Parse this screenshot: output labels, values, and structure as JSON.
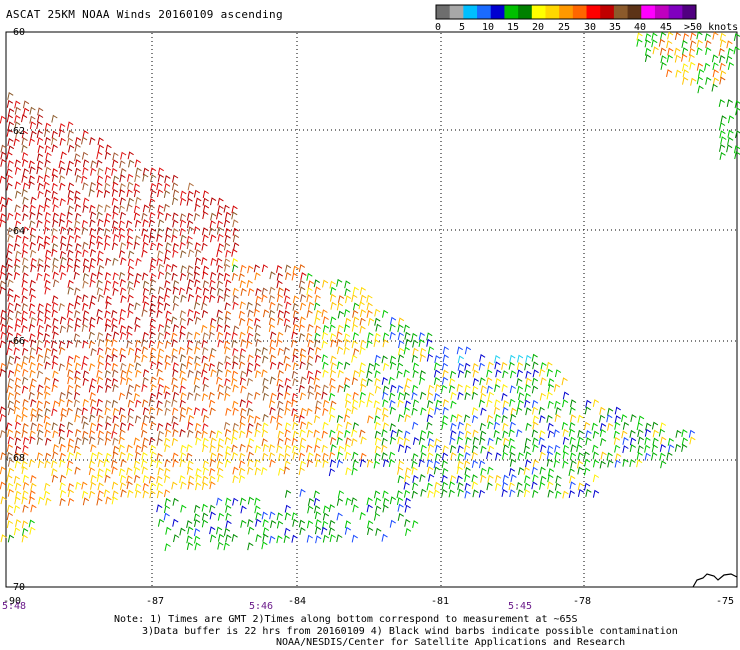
{
  "title": "ASCAT 25KM NOAA Winds 20160109 ascending",
  "legend": {
    "colors": [
      "#6e6e6e",
      "#a8a8a8",
      "#00bfff",
      "#1a6bff",
      "#0000d0",
      "#00c000",
      "#008000",
      "#ffff00",
      "#ffd700",
      "#ff9900",
      "#ff6600",
      "#ff0000",
      "#c00000",
      "#8b5a2b",
      "#5c3317",
      "#ff00ff",
      "#c000c0",
      "#8000c0",
      "#500080"
    ],
    "labels": [
      "0",
      "5",
      "10",
      "15",
      "20",
      "25",
      "30",
      "35",
      "40",
      "45",
      ">50 knots"
    ]
  },
  "axes": {
    "lat_labels": [
      "-60",
      "-62",
      "-64",
      "-66",
      "-68",
      "-70"
    ],
    "lon_labels": [
      "-90",
      "-87",
      "-84",
      "-81",
      "-78",
      "-75"
    ]
  },
  "times": [
    "5:48",
    "5:46",
    "5:45"
  ],
  "notes": [
    "Note: 1) Times are GMT 2)Times along bottom correspond to measurement at ~65S",
    "3)Data buffer is 22 hrs from 20160109 4) Black wind barbs indicate possible contamination",
    "NOAA/NESDIS/Center for Satellite Applications and Research"
  ],
  "colors": {
    "background": "#ffffff",
    "grid": "#000000",
    "time_labels": "#6a1a8a"
  }
}
